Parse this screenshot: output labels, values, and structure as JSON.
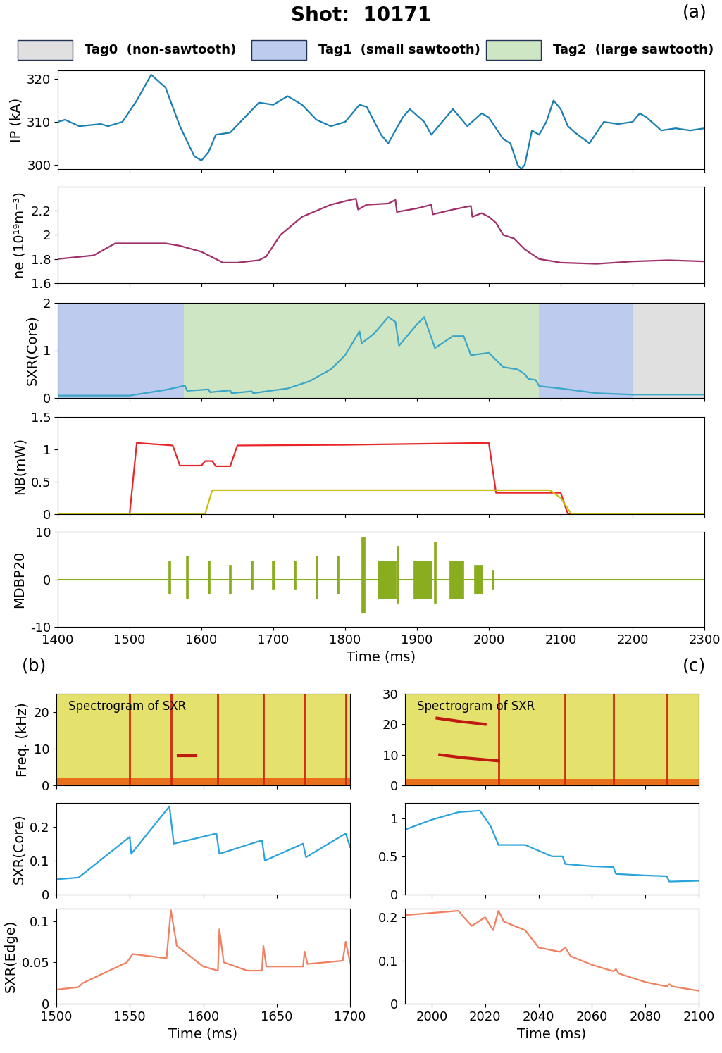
{
  "figure": {
    "title": "Shot:  10171",
    "panel_labels": [
      "(a)",
      "(b)",
      "(c)"
    ],
    "tags": [
      {
        "label": "Tag0  (non-sawtooth)",
        "color": "#e0e0e0"
      },
      {
        "label": "Tag1  (small sawtooth)",
        "color": "#bccbee"
      },
      {
        "label": "Tag2  (large sawtooth)",
        "color": "#cfe6c4"
      }
    ]
  },
  "chart_data": [
    {
      "type": "line",
      "ylabel": "IP (kA)",
      "xlim": [
        1400,
        2300
      ],
      "ylim": [
        299,
        322
      ],
      "xticks": [
        1400,
        1500,
        1600,
        1700,
        1800,
        1900,
        2000,
        2100,
        2200,
        2300
      ],
      "yticks": [
        300,
        310,
        320
      ],
      "tick_labels": "y",
      "series": [
        {
          "color": "#1a7fb0",
          "x": [
            1400,
            1410,
            1430,
            1460,
            1470,
            1490,
            1510,
            1530,
            1550,
            1570,
            1590,
            1600,
            1610,
            1620,
            1640,
            1660,
            1680,
            1700,
            1720,
            1740,
            1760,
            1780,
            1800,
            1820,
            1830,
            1850,
            1860,
            1880,
            1890,
            1910,
            1920,
            1940,
            1950,
            1970,
            1990,
            2000,
            2020,
            2030,
            2040,
            2045,
            2050,
            2060,
            2070,
            2080,
            2090,
            2100,
            2110,
            2120,
            2140,
            2160,
            2180,
            2200,
            2210,
            2220,
            2240,
            2260,
            2280,
            2300
          ],
          "values": [
            310,
            310.5,
            309,
            309.5,
            309,
            310,
            315,
            321,
            318,
            309,
            302,
            301,
            303,
            307,
            307.5,
            311,
            314.5,
            314,
            316,
            314,
            310.5,
            309,
            310,
            314,
            313.5,
            307,
            305,
            311,
            313,
            310,
            307,
            311,
            313,
            309,
            312,
            311,
            306,
            305,
            300,
            299,
            300,
            308,
            307,
            310,
            315,
            313,
            309,
            307.5,
            305,
            310,
            309.5,
            310,
            312,
            311,
            308,
            308.5,
            308,
            308.5
          ]
        }
      ]
    },
    {
      "type": "line",
      "ylabel": "ne (10¹⁹m⁻³)",
      "xlim": [
        1400,
        2300
      ],
      "ylim": [
        1.6,
        2.4
      ],
      "xticks": [
        1400,
        1500,
        1600,
        1700,
        1800,
        1900,
        2000,
        2100,
        2200,
        2300
      ],
      "yticks": [
        1.6,
        1.8,
        2,
        2.2
      ],
      "tick_labels": "y",
      "series": [
        {
          "color": "#a0306a",
          "x": [
            1400,
            1450,
            1480,
            1500,
            1550,
            1570,
            1600,
            1630,
            1650,
            1680,
            1690,
            1710,
            1740,
            1780,
            1800,
            1815,
            1818,
            1830,
            1860,
            1870,
            1872,
            1900,
            1920,
            1922,
            1950,
            1975,
            1977,
            1990,
            2000,
            2010,
            2020,
            2035,
            2050,
            2070,
            2100,
            2150,
            2200,
            2250,
            2300
          ],
          "values": [
            1.8,
            1.83,
            1.93,
            1.93,
            1.93,
            1.91,
            1.86,
            1.77,
            1.77,
            1.79,
            1.82,
            2.0,
            2.15,
            2.25,
            2.28,
            2.3,
            2.21,
            2.25,
            2.26,
            2.29,
            2.19,
            2.22,
            2.25,
            2.17,
            2.21,
            2.24,
            2.15,
            2.18,
            2.15,
            2.1,
            2.0,
            1.97,
            1.88,
            1.8,
            1.77,
            1.76,
            1.78,
            1.79,
            1.78
          ]
        }
      ]
    },
    {
      "type": "line",
      "ylabel": "SXR(Core)",
      "xlim": [
        1400,
        2300
      ],
      "ylim": [
        0,
        2
      ],
      "xticks": [
        1400,
        1500,
        1600,
        1700,
        1800,
        1900,
        2000,
        2100,
        2200,
        2300
      ],
      "yticks": [
        0,
        1,
        2
      ],
      "tick_labels": "y",
      "regions": [
        {
          "start": 1400,
          "end": 1575,
          "label": "Tag1  (small sawtooth)"
        },
        {
          "start": 1575,
          "end": 2070,
          "label": "Tag2  (large sawtooth)"
        },
        {
          "start": 2070,
          "end": 2200,
          "label": "Tag1  (small sawtooth)"
        },
        {
          "start": 2200,
          "end": 2300,
          "label": "Tag0  (non-sawtooth)"
        }
      ],
      "series": [
        {
          "color": "#3aa6c8",
          "x": [
            1400,
            1500,
            1550,
            1577,
            1580,
            1610,
            1612,
            1640,
            1642,
            1670,
            1672,
            1700,
            1720,
            1750,
            1780,
            1800,
            1820,
            1823,
            1840,
            1860,
            1870,
            1875,
            1900,
            1910,
            1925,
            1950,
            1965,
            1975,
            2000,
            2020,
            2040,
            2050,
            2055,
            2065,
            2070,
            2100,
            2150,
            2200,
            2300
          ],
          "values": [
            0.05,
            0.05,
            0.17,
            0.26,
            0.15,
            0.18,
            0.12,
            0.16,
            0.1,
            0.14,
            0.1,
            0.16,
            0.2,
            0.35,
            0.6,
            0.9,
            1.4,
            1.15,
            1.35,
            1.7,
            1.6,
            1.1,
            1.55,
            1.7,
            1.05,
            1.3,
            1.3,
            0.9,
            0.95,
            0.65,
            0.6,
            0.5,
            0.4,
            0.38,
            0.25,
            0.2,
            0.1,
            0.07,
            0.07
          ]
        }
      ]
    },
    {
      "type": "line",
      "ylabel": "NB(mW)",
      "xlim": [
        1400,
        2300
      ],
      "ylim": [
        0,
        1.5
      ],
      "xticks": [
        1400,
        1500,
        1600,
        1700,
        1800,
        1900,
        2000,
        2100,
        2200,
        2300
      ],
      "yticks": [
        0,
        0.5,
        1,
        1.5
      ],
      "tick_labels": "y",
      "series": [
        {
          "color": "#e8262a",
          "x": [
            1400,
            1500,
            1510,
            1560,
            1570,
            1600,
            1605,
            1615,
            1620,
            1640,
            1650,
            1800,
            2000,
            2010,
            2070,
            2100,
            2110,
            2300
          ],
          "values": [
            0,
            0,
            1.1,
            1.06,
            0.75,
            0.75,
            0.82,
            0.82,
            0.74,
            0.74,
            1.06,
            1.07,
            1.1,
            0.33,
            0.33,
            0.33,
            0,
            0
          ]
        },
        {
          "color": "#c8be14",
          "x": [
            1400,
            1605,
            1615,
            2085,
            2100,
            2115,
            2300
          ],
          "values": [
            0,
            0,
            0.37,
            0.37,
            0.25,
            0,
            0
          ]
        }
      ]
    },
    {
      "type": "bursts",
      "ylabel": "MDBP20",
      "xlabel": "Time (ms)",
      "xlim": [
        1400,
        2300
      ],
      "ylim": [
        -10,
        10
      ],
      "xticks": [
        1400,
        1500,
        1600,
        1700,
        1800,
        1900,
        2000,
        2100,
        2200,
        2300
      ],
      "yticks": [
        -10,
        0,
        10
      ],
      "color": "#8aad20",
      "baseline": 0,
      "bursts": [
        {
          "t": 1555,
          "width": 3,
          "max": 4,
          "min": -3
        },
        {
          "t": 1580,
          "width": 3,
          "max": 5,
          "min": -4
        },
        {
          "t": 1610,
          "width": 3,
          "max": 4,
          "min": -3
        },
        {
          "t": 1640,
          "width": 3,
          "max": 3,
          "min": -3
        },
        {
          "t": 1670,
          "width": 3,
          "max": 4,
          "min": -2
        },
        {
          "t": 1700,
          "width": 3,
          "max": 4,
          "min": -2
        },
        {
          "t": 1730,
          "width": 3,
          "max": 4,
          "min": -2
        },
        {
          "t": 1760,
          "width": 3,
          "max": 5,
          "min": -4
        },
        {
          "t": 1790,
          "width": 3,
          "max": 5,
          "min": -3
        },
        {
          "t": 1825,
          "width": 4,
          "max": 9,
          "min": -7
        },
        {
          "t": 1858,
          "width": 25,
          "max": 4,
          "min": -4
        },
        {
          "t": 1873,
          "width": 3,
          "max": 7,
          "min": -5
        },
        {
          "t": 1908,
          "width": 25,
          "max": 4,
          "min": -4
        },
        {
          "t": 1925,
          "width": 3,
          "max": 8,
          "min": -5
        },
        {
          "t": 1955,
          "width": 20,
          "max": 4,
          "min": -4
        },
        {
          "t": 1985,
          "width": 12,
          "max": 3,
          "min": -3
        },
        {
          "t": 2005,
          "width": 3,
          "max": 2,
          "min": -2
        }
      ]
    },
    {
      "type": "spectrogram",
      "ylabel": "Freq. (kHz)",
      "annotation": "Spectrogram of SXR",
      "xlim": [
        1500,
        1700
      ],
      "ylim": [
        0,
        25
      ],
      "xticks": [
        1500,
        1550,
        1600,
        1650,
        1700
      ],
      "yticks": [
        0,
        10,
        20
      ],
      "tick_labels": "y",
      "low_band": 2,
      "streaks": [
        1550,
        1578,
        1610,
        1641,
        1669,
        1697
      ],
      "modes": [
        {
          "x": [
            1583,
            1595
          ],
          "values": [
            8,
            8
          ]
        }
      ]
    },
    {
      "type": "line",
      "ylabel": "SXR(Core)",
      "xlim": [
        1500,
        1700
      ],
      "ylim": [
        0,
        0.27
      ],
      "xticks": [
        1500,
        1550,
        1600,
        1650,
        1700
      ],
      "yticks": [
        0,
        0.1,
        0.2
      ],
      "tick_labels": "y",
      "series": [
        {
          "color": "#2aa3dc",
          "x": [
            1500,
            1515,
            1518,
            1550,
            1551,
            1577,
            1580,
            1609,
            1611,
            1640,
            1642,
            1668,
            1670,
            1697,
            1700
          ],
          "values": [
            0.045,
            0.05,
            0.06,
            0.17,
            0.12,
            0.26,
            0.15,
            0.18,
            0.12,
            0.16,
            0.1,
            0.15,
            0.11,
            0.18,
            0.14
          ]
        }
      ]
    },
    {
      "type": "line",
      "ylabel": "SXR(Edge)",
      "xlabel": "Time (ms)",
      "xlim": [
        1500,
        1700
      ],
      "ylim": [
        0,
        0.115
      ],
      "xticks": [
        1500,
        1550,
        1600,
        1650,
        1700
      ],
      "yticks": [
        0,
        0.05,
        0.1
      ],
      "series": [
        {
          "color": "#f08060",
          "x": [
            1500,
            1515,
            1518,
            1548,
            1552,
            1575,
            1578,
            1582,
            1600,
            1610,
            1611,
            1614,
            1630,
            1640,
            1641,
            1643,
            1668,
            1669,
            1671,
            1695,
            1697,
            1700
          ],
          "values": [
            0.017,
            0.02,
            0.025,
            0.05,
            0.06,
            0.055,
            0.113,
            0.07,
            0.045,
            0.04,
            0.09,
            0.05,
            0.04,
            0.04,
            0.07,
            0.045,
            0.045,
            0.063,
            0.048,
            0.052,
            0.075,
            0.05
          ]
        }
      ]
    },
    {
      "type": "spectrogram",
      "annotation": "Spectrogram of SXR",
      "xlim": [
        1990,
        2100
      ],
      "ylim": [
        0,
        30
      ],
      "xticks": [
        2000,
        2020,
        2040,
        2060,
        2080,
        2100
      ],
      "yticks": [
        0,
        10,
        20,
        30
      ],
      "tick_labels": "y",
      "low_band": 2,
      "streaks": [
        2025,
        2050,
        2068,
        2088
      ],
      "modes": [
        {
          "x": [
            2002,
            2010,
            2020
          ],
          "values": [
            22,
            21,
            20
          ]
        },
        {
          "x": [
            2003,
            2012,
            2025
          ],
          "values": [
            10,
            9,
            8
          ]
        }
      ]
    },
    {
      "type": "line",
      "xlim": [
        1990,
        2100
      ],
      "ylim": [
        0,
        1.2
      ],
      "xticks": [
        2000,
        2020,
        2040,
        2060,
        2080,
        2100
      ],
      "yticks": [
        0,
        0.5,
        1
      ],
      "tick_labels": "y",
      "series": [
        {
          "color": "#2aa3dc",
          "x": [
            1990,
            2000,
            2010,
            2018,
            2022,
            2025,
            2035,
            2045,
            2049,
            2050,
            2060,
            2068,
            2069,
            2080,
            2088,
            2089,
            2100
          ],
          "values": [
            0.85,
            0.98,
            1.08,
            1.1,
            0.9,
            0.65,
            0.65,
            0.5,
            0.5,
            0.4,
            0.37,
            0.36,
            0.27,
            0.25,
            0.24,
            0.17,
            0.18
          ]
        }
      ]
    },
    {
      "type": "line",
      "xlabel": "Time (ms)",
      "xlim": [
        1990,
        2100
      ],
      "ylim": [
        0,
        0.22
      ],
      "xticks": [
        2000,
        2020,
        2040,
        2060,
        2080,
        2100
      ],
      "yticks": [
        0,
        0.1,
        0.2
      ],
      "series": [
        {
          "color": "#f08060",
          "x": [
            1990,
            2000,
            2010,
            2012,
            2015,
            2020,
            2023,
            2025,
            2027,
            2035,
            2040,
            2048,
            2050,
            2052,
            2060,
            2068,
            2069,
            2070,
            2080,
            2088,
            2089,
            2090,
            2100
          ],
          "values": [
            0.205,
            0.21,
            0.215,
            0.2,
            0.18,
            0.2,
            0.17,
            0.215,
            0.19,
            0.17,
            0.13,
            0.12,
            0.13,
            0.11,
            0.09,
            0.075,
            0.08,
            0.07,
            0.05,
            0.04,
            0.045,
            0.04,
            0.03
          ]
        }
      ]
    }
  ]
}
